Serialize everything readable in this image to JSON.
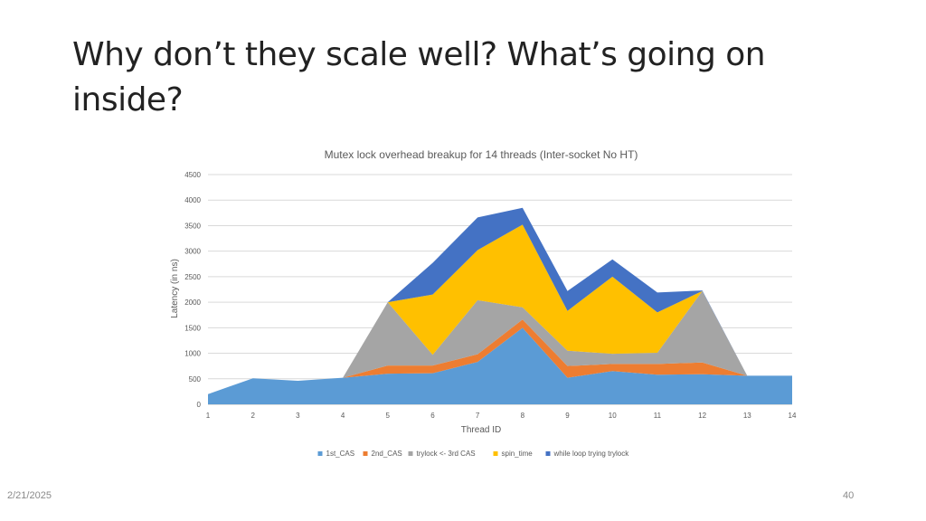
{
  "slide": {
    "title": "Why don’t they scale well? What’s going on inside?",
    "date": "2/21/2025",
    "page_number": "40"
  },
  "chart_data": {
    "type": "area",
    "stacked": true,
    "title": "Mutex lock overhead breakup for 14 threads  (Inter-socket No HT)",
    "xlabel": "Thread ID",
    "ylabel": "Latency (in ns)",
    "categories": [
      "1",
      "2",
      "3",
      "4",
      "5",
      "6",
      "7",
      "8",
      "9",
      "10",
      "11",
      "12",
      "13",
      "14"
    ],
    "ylim": [
      0,
      4500
    ],
    "yticks": [
      0,
      500,
      1000,
      1500,
      2000,
      2500,
      3000,
      3500,
      4000,
      4500
    ],
    "grid": true,
    "legend_position": "bottom",
    "series": [
      {
        "name": "1st_CAS",
        "color": "#5B9BD5",
        "values": [
          200,
          510,
          460,
          520,
          600,
          610,
          830,
          1500,
          520,
          650,
          580,
          590,
          560,
          560
        ]
      },
      {
        "name": "2nd_CAS",
        "color": "#ED7D31",
        "values": [
          0,
          0,
          0,
          0,
          160,
          150,
          150,
          160,
          230,
          140,
          210,
          230,
          0,
          0
        ]
      },
      {
        "name": "trylock <- 3rd CAS",
        "color": "#A5A5A5",
        "values": [
          0,
          0,
          0,
          0,
          1240,
          210,
          1060,
          240,
          300,
          200,
          220,
          1400,
          0,
          0
        ]
      },
      {
        "name": "spin_time",
        "color": "#FFC000",
        "values": [
          0,
          0,
          0,
          0,
          0,
          1180,
          980,
          1620,
          780,
          1510,
          790,
          0,
          0,
          0
        ]
      },
      {
        "name": "while loop trying trylock",
        "color": "#4472C4",
        "values": [
          0,
          0,
          0,
          0,
          0,
          620,
          640,
          330,
          390,
          340,
          390,
          10,
          0,
          0
        ]
      }
    ]
  }
}
